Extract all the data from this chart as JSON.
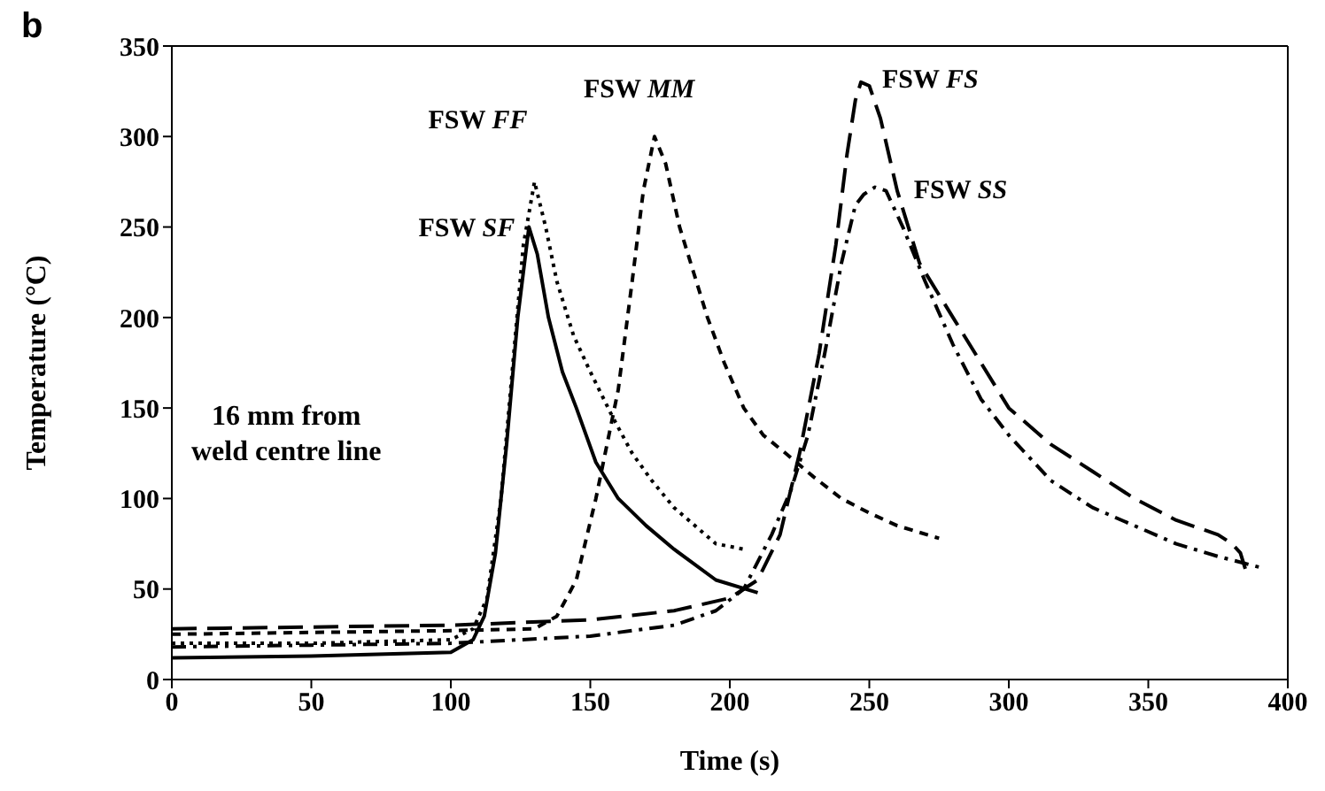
{
  "chart_data": {
    "type": "line",
    "title": "b",
    "xlabel": "Time (s)",
    "ylabel": "Temperature (°C)",
    "xlim": [
      0,
      400
    ],
    "xticks": [
      0,
      50,
      100,
      150,
      200,
      250,
      300,
      350,
      400
    ],
    "ylim": [
      0,
      350
    ],
    "yticks": [
      0,
      50,
      100,
      150,
      200,
      250,
      300,
      350
    ],
    "marker": "none",
    "annotations": [
      "16 mm from\nweld centre line"
    ],
    "series": [
      {
        "name": "FSW SF",
        "color": "#000000",
        "line_style": "solid",
        "x": [
          0,
          50,
          100,
          108,
          112,
          116,
          120,
          124,
          128,
          131,
          135,
          140,
          145,
          152,
          160,
          170,
          180,
          195,
          210
        ],
        "values": [
          12,
          13,
          15,
          22,
          35,
          70,
          130,
          200,
          250,
          235,
          200,
          170,
          150,
          120,
          100,
          85,
          72,
          55,
          48
        ]
      },
      {
        "name": "FSW FF",
        "color": "#000000",
        "line_style": "dotted",
        "x": [
          0,
          50,
          100,
          108,
          113,
          118,
          122,
          126,
          130,
          134,
          138,
          144,
          150,
          158,
          165,
          172,
          180,
          195,
          205
        ],
        "values": [
          20,
          20,
          22,
          28,
          45,
          100,
          170,
          240,
          275,
          250,
          220,
          190,
          170,
          145,
          125,
          110,
          95,
          75,
          72
        ]
      },
      {
        "name": "FSW MM",
        "color": "#000000",
        "line_style": "dashed",
        "x": [
          0,
          50,
          100,
          130,
          138,
          145,
          152,
          160,
          165,
          169,
          173,
          177,
          182,
          187,
          192,
          198,
          205,
          212,
          220,
          230,
          240,
          250,
          260,
          275
        ],
        "values": [
          25,
          26,
          27,
          28,
          35,
          55,
          100,
          160,
          220,
          270,
          300,
          285,
          250,
          225,
          200,
          175,
          150,
          135,
          125,
          112,
          100,
          92,
          85,
          78
        ]
      },
      {
        "name": "FSW FS",
        "color": "#000000",
        "line_style": "longdash",
        "x": [
          0,
          50,
          100,
          150,
          180,
          200,
          210,
          218,
          225,
          232,
          238,
          242,
          245,
          247,
          250,
          254,
          260,
          268,
          280,
          290,
          300,
          315,
          330,
          345,
          360,
          375,
          380,
          383,
          385
        ],
        "values": [
          28,
          29,
          30,
          33,
          38,
          45,
          55,
          80,
          125,
          180,
          240,
          290,
          320,
          330,
          328,
          310,
          270,
          230,
          200,
          175,
          150,
          130,
          115,
          100,
          88,
          80,
          75,
          70,
          60
        ]
      },
      {
        "name": "FSW SS",
        "color": "#000000",
        "line_style": "dashdot",
        "x": [
          0,
          50,
          100,
          150,
          180,
          195,
          205,
          215,
          222,
          228,
          234,
          240,
          245,
          248,
          252,
          256,
          262,
          270,
          280,
          290,
          300,
          315,
          330,
          345,
          360,
          375,
          390
        ],
        "values": [
          18,
          19,
          20,
          24,
          30,
          38,
          50,
          80,
          105,
          135,
          180,
          230,
          262,
          268,
          272,
          270,
          250,
          220,
          185,
          155,
          135,
          110,
          95,
          85,
          75,
          68,
          62
        ]
      }
    ]
  }
}
